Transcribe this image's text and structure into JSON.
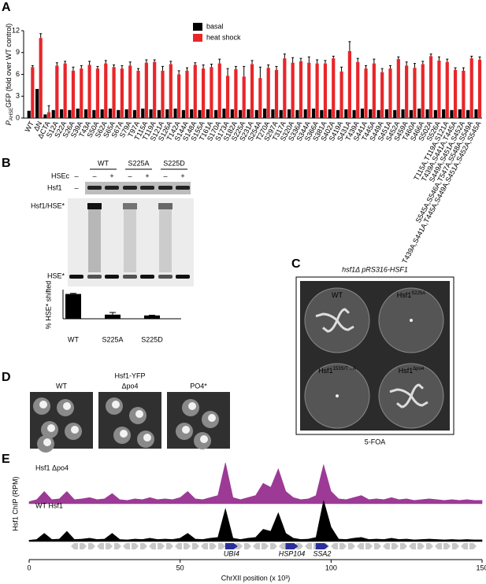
{
  "panel_labels": [
    "A",
    "B",
    "C",
    "D",
    "E"
  ],
  "chart_data": [
    {
      "type": "bar",
      "ylabel": {
        "main": "P",
        "sub": "AHSE",
        "rest": "GFP (fold over WT control)"
      },
      "categories": [
        "WT",
        "ΔN",
        "ΔCTA",
        "S12A",
        "S22A",
        "S26A",
        "S39A",
        "T43A",
        "S50A",
        "S62A",
        "S65A",
        "S67A",
        "S79A",
        "T97A",
        "T115A",
        "T119A",
        "S121A",
        "S126A",
        "T142A",
        "S144A",
        "S148A",
        "S155A",
        "T161A",
        "S170A",
        "S173A",
        "S182A",
        "S225A",
        "S231A",
        "S254A",
        "T270A",
        "S297A",
        "T317A",
        "S320A",
        "S336A",
        "S344A",
        "S366A",
        "S381A",
        "S402A",
        "S419A",
        "S431A",
        "T439A",
        "S441A",
        "T445A",
        "S449A",
        "S451A",
        "S452A",
        "S459A",
        "T460A",
        "S466A",
        "S502A",
        "S526A",
        "T115A,T119A,S121A",
        "T439A,S441A,T445A",
        "S449A,S451A,S452A",
        "S545A,S546A,T547A,S548A,S549A",
        "T439A,S441A,T445A,S449A,S451A,S452A,S545A"
      ],
      "series": [
        {
          "name": "basal",
          "color": "#000000",
          "values": [
            1.0,
            4.0,
            0.5,
            1.1,
            1.2,
            1.1,
            1.3,
            1.2,
            1.1,
            1.2,
            1.3,
            1.1,
            1.2,
            1.1,
            1.3,
            1.2,
            1.1,
            1.2,
            1.3,
            1.1,
            1.2,
            1.1,
            1.2,
            1.1,
            1.3,
            1.2,
            1.1,
            1.2,
            1.1,
            1.3,
            1.2,
            1.1,
            1.2,
            1.1,
            1.2,
            1.3,
            1.1,
            1.2,
            1.1,
            1.2,
            1.1,
            1.3,
            1.2,
            1.1,
            1.2,
            1.1,
            1.2,
            1.1,
            1.3,
            1.2,
            1.1,
            1.2,
            1.1,
            1.2,
            1.1,
            1.2
          ]
        },
        {
          "name": "heat shock",
          "color": "#e8262a",
          "values": [
            7.0,
            11.0,
            0.8,
            7.2,
            7.5,
            6.5,
            6.8,
            7.3,
            6.8,
            7.5,
            7.0,
            6.8,
            7.2,
            6.5,
            7.6,
            7.7,
            6.5,
            7.4,
            6.0,
            6.5,
            7.3,
            6.8,
            7.0,
            7.5,
            5.8,
            6.7,
            5.7,
            7.4,
            5.5,
            6.9,
            6.6,
            8.2,
            7.6,
            7.8,
            7.6,
            7.5,
            7.5,
            8.2,
            6.4,
            9.2,
            7.7,
            6.8,
            7.5,
            6.3,
            6.8,
            8.1,
            7.2,
            6.9,
            7.4,
            8.5,
            7.9,
            7.7,
            6.6,
            6.5,
            8.2,
            8.0
          ],
          "errors": [
            0.2,
            0.6,
            0.9,
            0.4,
            0.3,
            0.5,
            0.4,
            0.5,
            0.3,
            0.4,
            0.3,
            0.4,
            0.5,
            0.3,
            0.4,
            0.3,
            0.6,
            0.4,
            0.5,
            0.4,
            0.3,
            0.5,
            0.4,
            0.6,
            1.0,
            0.4,
            1.4,
            0.5,
            1.5,
            0.4,
            0.5,
            0.6,
            0.7,
            0.4,
            0.8,
            0.5,
            0.4,
            0.3,
            0.6,
            1.3,
            0.5,
            0.4,
            0.6,
            0.5,
            0.4,
            0.3,
            0.5,
            0.6,
            0.4,
            0.3,
            0.5,
            0.4,
            0.3,
            0.4,
            0.3,
            0.4
          ]
        }
      ],
      "ylim": [
        0,
        12
      ],
      "yticks": [
        0,
        3,
        6,
        9,
        12
      ]
    },
    {
      "type": "bar",
      "ylabel": "% HSE* shifted",
      "categories": [
        "WT",
        "S225A",
        "S225D"
      ],
      "values": [
        90,
        15,
        12
      ],
      "errors": [
        2,
        8,
        1
      ],
      "color": "#000000",
      "ylim": [
        0,
        100
      ]
    },
    {
      "type": "area",
      "ylabel": "Hsf1 ChIP (RPM)",
      "xlabel": "ChrXII position (x 10³)",
      "xlim": [
        0,
        150
      ],
      "xticks": [
        0,
        50,
        100,
        150
      ],
      "ylim": [
        0,
        1
      ],
      "x": [
        0,
        2.5,
        5,
        7.5,
        10,
        12.5,
        15,
        17.5,
        20,
        22.5,
        25,
        27.5,
        30,
        32.5,
        35,
        37.5,
        40,
        42.5,
        45,
        47.5,
        50,
        52.5,
        55,
        57.5,
        60,
        62.5,
        65,
        67.5,
        70,
        72.5,
        75,
        77.5,
        80,
        82.5,
        85,
        87.5,
        90,
        92.5,
        95,
        97.5,
        100,
        102.5,
        105,
        107.5,
        110,
        112.5,
        115,
        117.5,
        120,
        122.5,
        125,
        127.5,
        130,
        132.5,
        135,
        137.5,
        140,
        142.5,
        145,
        147.5,
        150
      ],
      "series": [
        {
          "name": "Hsf1 Δpo4",
          "color": "#9c3a96",
          "values": [
            0.05,
            0.1,
            0.3,
            0.1,
            0.12,
            0.3,
            0.1,
            0.12,
            0.15,
            0.1,
            0.12,
            0.25,
            0.1,
            0.08,
            0.12,
            0.1,
            0.15,
            0.1,
            0.12,
            0.1,
            0.15,
            0.3,
            0.12,
            0.1,
            0.15,
            0.2,
            1.0,
            0.15,
            0.1,
            0.15,
            0.2,
            0.5,
            0.4,
            0.85,
            0.3,
            0.15,
            0.1,
            0.12,
            0.2,
            0.95,
            0.3,
            0.12,
            0.1,
            0.15,
            0.2,
            0.1,
            0.12,
            0.1,
            0.15,
            0.1,
            0.12,
            0.08,
            0.1,
            0.12,
            0.1,
            0.08,
            0.1,
            0.08,
            0.1,
            0.08,
            0.08
          ]
        },
        {
          "name": "WT Hsf1",
          "color": "#000000",
          "values": [
            0.03,
            0.05,
            0.2,
            0.05,
            0.06,
            0.25,
            0.05,
            0.06,
            0.08,
            0.05,
            0.06,
            0.2,
            0.05,
            0.04,
            0.06,
            0.05,
            0.08,
            0.05,
            0.06,
            0.05,
            0.08,
            0.2,
            0.06,
            0.05,
            0.08,
            0.1,
            0.8,
            0.08,
            0.05,
            0.08,
            0.1,
            0.3,
            0.25,
            0.7,
            0.2,
            0.08,
            0.05,
            0.06,
            0.1,
            1.0,
            0.35,
            0.06,
            0.05,
            0.08,
            0.1,
            0.05,
            0.06,
            0.05,
            0.08,
            0.05,
            0.06,
            0.04,
            0.05,
            0.06,
            0.05,
            0.04,
            0.05,
            0.04,
            0.05,
            0.04,
            0.04
          ]
        }
      ],
      "annotations": [
        {
          "text": "UBI4",
          "x": 67
        },
        {
          "text": "HSP104",
          "x": 87
        },
        {
          "text": "SSA2",
          "x": 97
        }
      ]
    }
  ],
  "gel": {
    "samples": [
      "WT",
      "S225A",
      "S225D"
    ],
    "hsec_label": "HSEc",
    "hsec": [
      "–",
      "–",
      "+",
      "–",
      "+",
      "–",
      "+"
    ],
    "hsf1_label": "Hsf1",
    "hsf1_minus": "–",
    "upper_band": "Hsf1/HSE*",
    "lower_band": "HSE*"
  },
  "plates": {
    "title": "hsf1Δ pRS316-HSF1",
    "labels": [
      {
        "main": "WT",
        "sup": ""
      },
      {
        "main": "Hsf1",
        "sup": "S225A"
      },
      {
        "main": "Hsf1",
        "sup": "153S/T→A"
      },
      {
        "main": "Hsf1",
        "sup": "Δpo4"
      }
    ],
    "medium": "5-FOA"
  },
  "microscopy": {
    "title": "Hsf1-YFP",
    "labels": [
      "WT",
      "Δpo4",
      "PO4*"
    ]
  }
}
